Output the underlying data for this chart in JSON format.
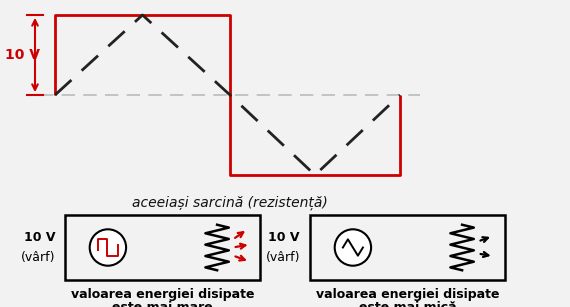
{
  "bg_color": "#f2f2f2",
  "sq_color": "#cc0000",
  "tri_color": "#222222",
  "mid_color": "#bbbbbb",
  "arrow_color": "#cc0000",
  "black": "#111111",
  "title_text": "aceeiași sarcină (rezistență)",
  "label_left1": "valoarea energiei disipate",
  "label_left2": "este mai mare",
  "label_right1": "valoarea energiei disipate",
  "label_right2": "este mai mică",
  "label_10v": "10 V",
  "label_varf": "(vârf)"
}
